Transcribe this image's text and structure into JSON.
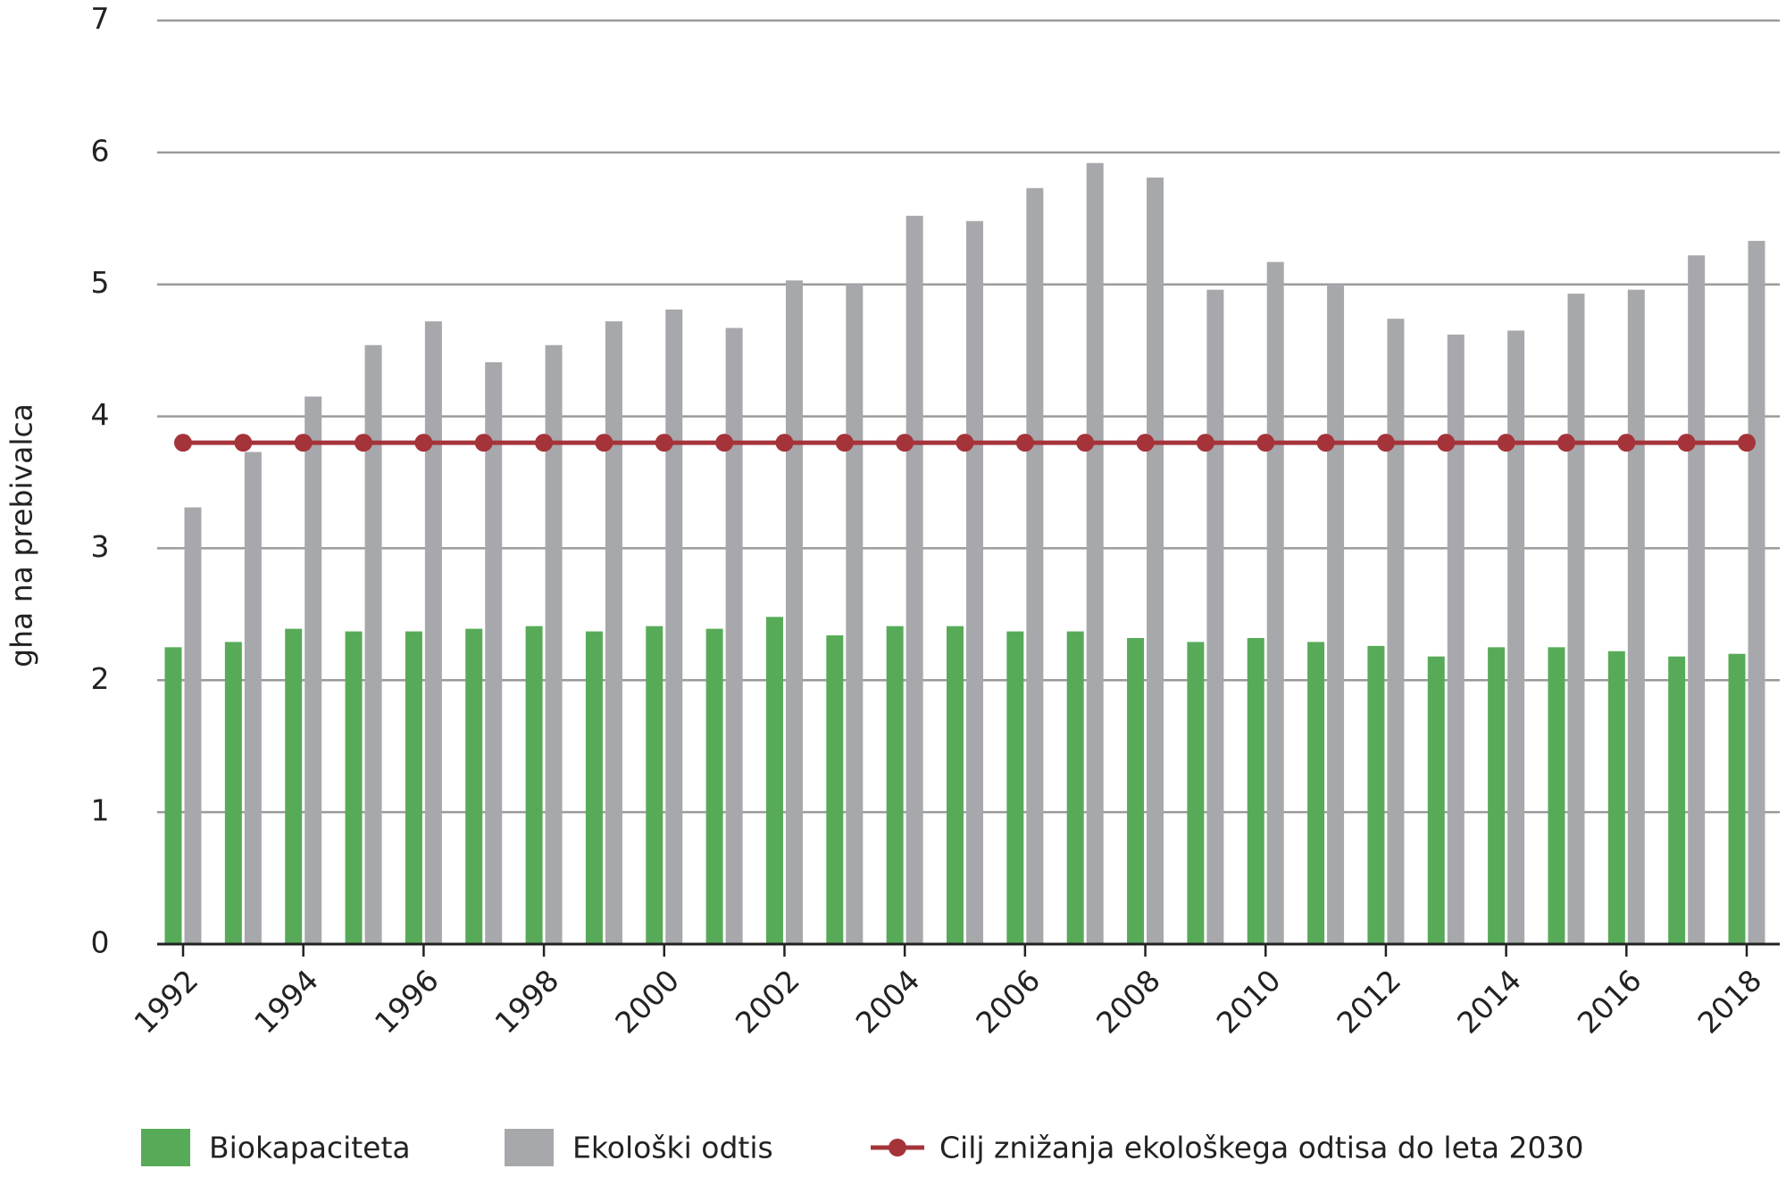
{
  "chart_data": {
    "type": "bar",
    "y_label": "gha na prebivalca",
    "categories": [
      "1992",
      null,
      "1994",
      null,
      "1996",
      null,
      "1998",
      null,
      "2000",
      null,
      "2002",
      null,
      "2004",
      null,
      "2006",
      null,
      "2008",
      null,
      "2010",
      null,
      "2012",
      null,
      "2014",
      null,
      "2016",
      null,
      "2018"
    ],
    "series": [
      {
        "name": "Biokapaciteta",
        "type": "bar",
        "color": "#57ab58",
        "values": [
          2.25,
          2.29,
          2.39,
          2.37,
          2.37,
          2.39,
          2.41,
          2.37,
          2.41,
          2.39,
          2.48,
          2.34,
          2.41,
          2.41,
          2.37,
          2.37,
          2.32,
          2.29,
          2.32,
          2.29,
          2.26,
          2.18,
          2.25,
          2.25,
          2.22,
          2.18,
          2.2
        ]
      },
      {
        "name": "Ekološki odtis",
        "type": "bar",
        "color": "#a7a8ab",
        "values": [
          3.31,
          3.73,
          4.15,
          4.54,
          4.72,
          4.41,
          4.54,
          4.72,
          4.81,
          4.67,
          5.03,
          5.0,
          5.52,
          5.48,
          5.73,
          5.92,
          5.81,
          4.96,
          5.17,
          5.0,
          4.74,
          4.62,
          4.65,
          4.93,
          4.96,
          5.22,
          5.33
        ]
      },
      {
        "name": "Cilj znižanja ekološkega odtisa do leta 2030",
        "type": "line",
        "color": "#a5333a",
        "values": [
          3.8,
          3.8,
          3.8,
          3.8,
          3.8,
          3.8,
          3.8,
          3.8,
          3.8,
          3.8,
          3.8,
          3.8,
          3.8,
          3.8,
          3.8,
          3.8,
          3.8,
          3.8,
          3.8,
          3.8,
          3.8,
          3.8,
          3.8,
          3.8,
          3.8,
          3.8,
          3.8
        ]
      }
    ],
    "ylim": [
      0,
      7
    ],
    "yticks": [
      0,
      1,
      2,
      3,
      4,
      5,
      6,
      7
    ],
    "grid": true
  }
}
